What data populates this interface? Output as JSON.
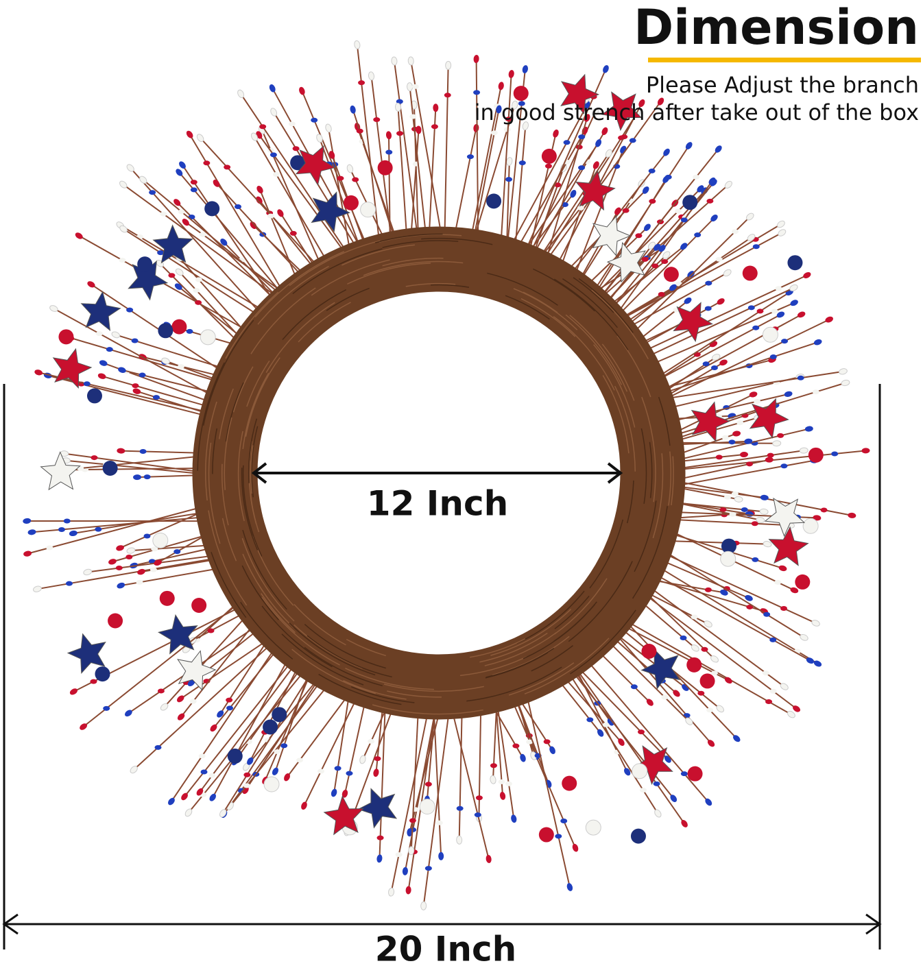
{
  "header": {
    "title": "Dimension",
    "note": [
      "Please Adjust the branch",
      "in good strench after take out of the box"
    ]
  },
  "dimensions": {
    "inner": "12 Inch",
    "outer": "20 Inch"
  }
}
